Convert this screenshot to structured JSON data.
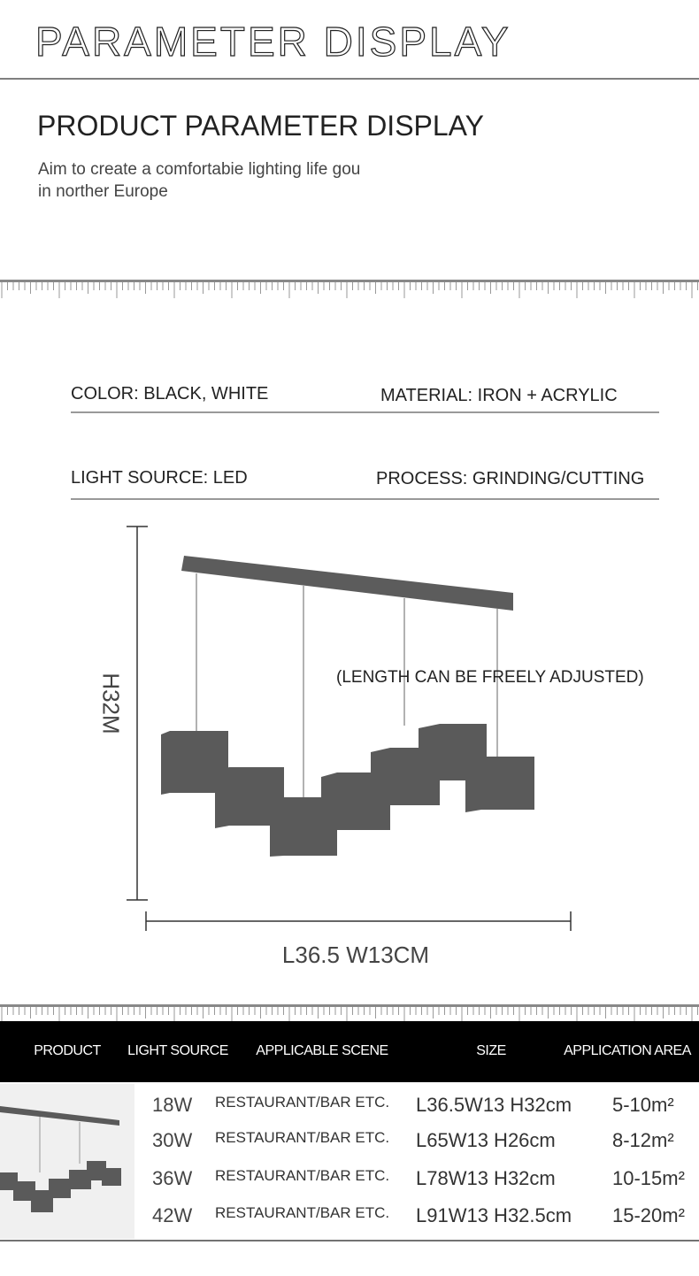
{
  "header": {
    "title": "PARAMETER DISPLAY"
  },
  "intro": {
    "title": "PRODUCT PARAMETER DISPLAY",
    "lines": [
      "Aim to create a comfortabie lighting life gou",
      "in norther Europe"
    ]
  },
  "specs": [
    [
      "COLOR: BLACK, WHITE",
      "MATERIAL: IRON + ACRYLIC"
    ],
    [
      "LIGHT SOURCE: LED",
      "PROCESS: GRINDING/CUTTING"
    ]
  ],
  "dimensions": {
    "height": "H32M",
    "note": "(LENGTH CAN BE FREELY ADJUSTED)",
    "width": "L36.5 W13CM"
  },
  "table": {
    "headers": [
      "PRODUCT",
      "LIGHT SOURCE",
      "APPLICABLE SCENE",
      "SIZE",
      "APPLICATION AREA"
    ],
    "rows": [
      [
        "18W",
        "RESTAURANT/BAR ETC.",
        "L36.5W13 H32cm",
        "5-10m²"
      ],
      [
        "30W",
        "RESTAURANT/BAR ETC.",
        "L65W13 H26cm",
        "8-12m²"
      ],
      [
        "36W",
        "RESTAURANT/BAR ETC.",
        "L78W13 H32cm",
        "10-15m²"
      ],
      [
        "42W",
        "RESTAURANT/BAR ETC.",
        "L91W13 H32.5cm",
        "15-20m²"
      ]
    ]
  }
}
